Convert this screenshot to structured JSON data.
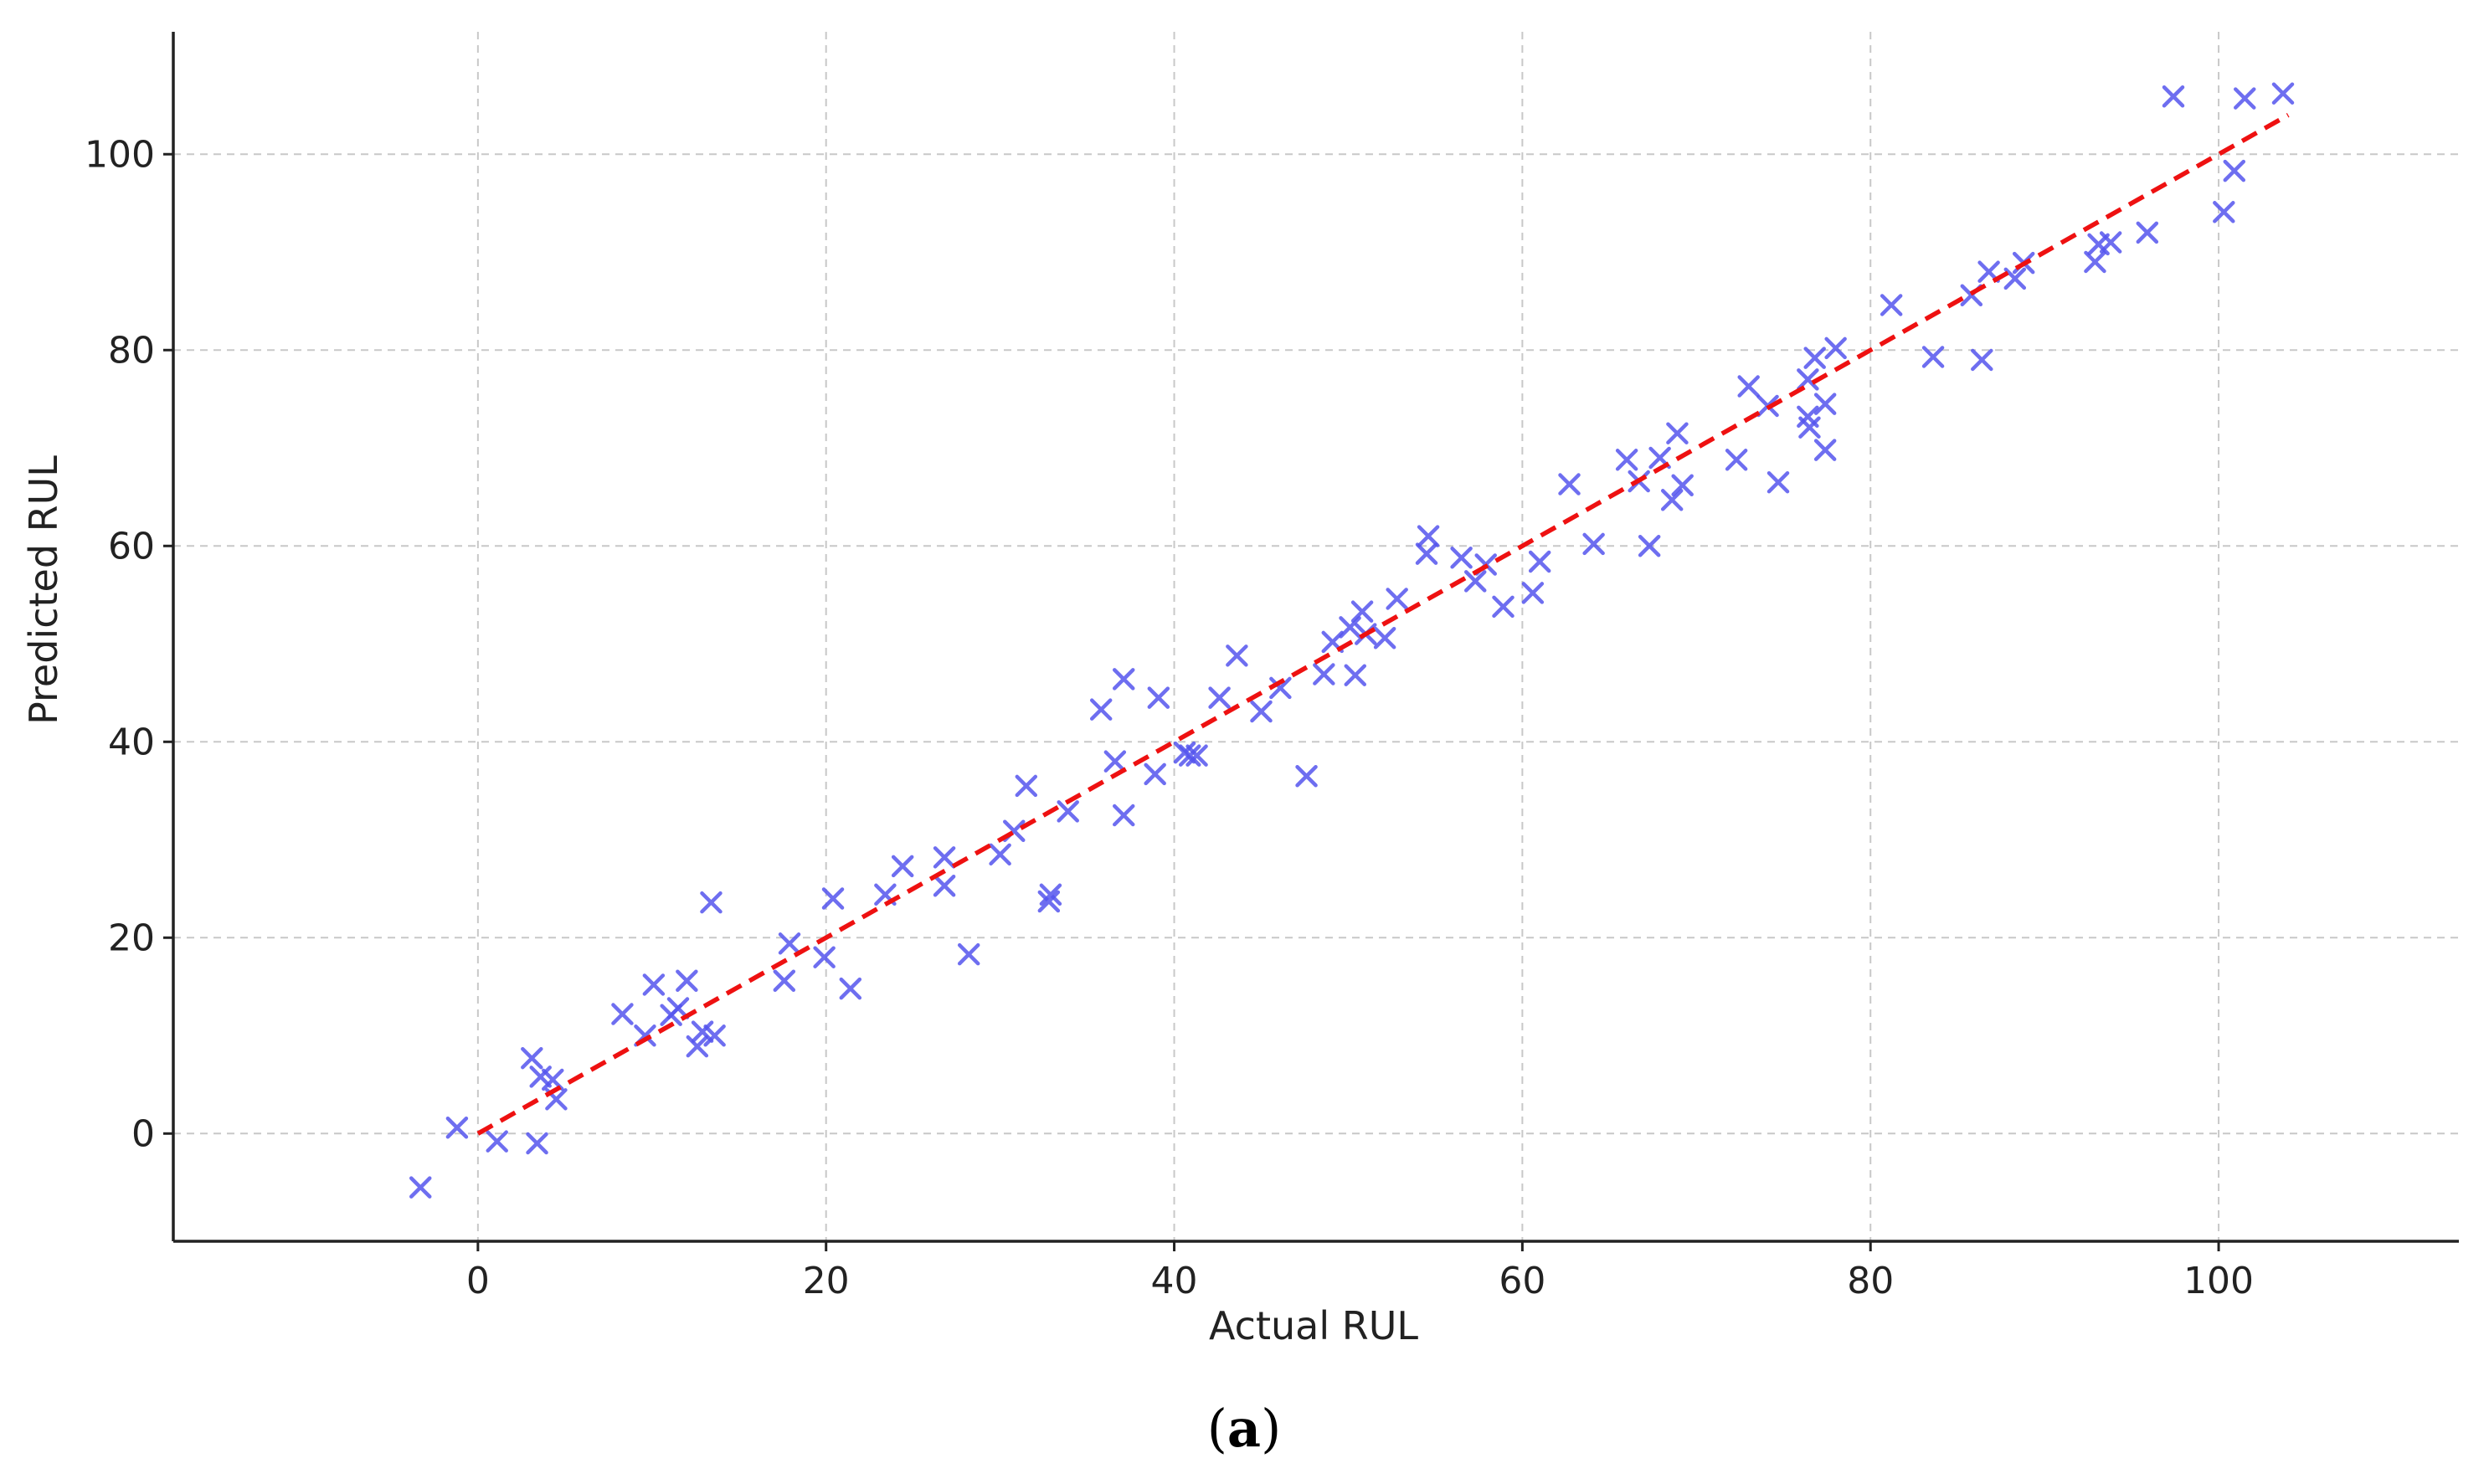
{
  "caption": {
    "open": "(",
    "letter": "a",
    "close": ")"
  },
  "chart_data": {
    "type": "scatter",
    "xlabel": "Actual RUL",
    "ylabel": "Predicted RUL",
    "xlim": [
      -17.5,
      113.8
    ],
    "ylim": [
      -11,
      112.5
    ],
    "xticks": [
      0,
      20,
      40,
      60,
      80,
      100
    ],
    "yticks": [
      0,
      20,
      40,
      60,
      80,
      100
    ],
    "grid": true,
    "grid_style": "dashed",
    "marker": "x",
    "marker_color": "#5555EE",
    "series": [
      {
        "points": [
          [
            -3.3,
            -5.5
          ],
          [
            -1.2,
            0.6
          ],
          [
            1.1,
            -0.8
          ],
          [
            3.1,
            7.7
          ],
          [
            3.4,
            -1.0
          ],
          [
            3.6,
            5.8
          ],
          [
            4.3,
            5.5
          ],
          [
            4.5,
            3.5
          ],
          [
            8.3,
            12.2
          ],
          [
            9.6,
            10.0
          ],
          [
            10.1,
            15.2
          ],
          [
            11.1,
            12.1
          ],
          [
            11.5,
            12.8
          ],
          [
            12.0,
            15.6
          ],
          [
            12.6,
            8.9
          ],
          [
            12.9,
            10.4
          ],
          [
            13.4,
            23.6
          ],
          [
            13.6,
            10.0
          ],
          [
            17.6,
            15.6
          ],
          [
            17.9,
            19.4
          ],
          [
            19.9,
            18.0
          ],
          [
            20.4,
            24.0
          ],
          [
            21.4,
            14.8
          ],
          [
            23.4,
            24.4
          ],
          [
            24.4,
            27.3
          ],
          [
            26.8,
            28.2
          ],
          [
            26.8,
            25.3
          ],
          [
            28.2,
            18.3
          ],
          [
            30.0,
            28.5
          ],
          [
            30.8,
            30.9
          ],
          [
            31.5,
            35.5
          ],
          [
            32.8,
            23.7
          ],
          [
            32.9,
            24.4
          ],
          [
            33.9,
            32.9
          ],
          [
            35.8,
            43.3
          ],
          [
            36.6,
            38.0
          ],
          [
            37.1,
            46.4
          ],
          [
            37.1,
            32.5
          ],
          [
            38.9,
            36.7
          ],
          [
            39.1,
            44.5
          ],
          [
            40.6,
            38.9
          ],
          [
            40.9,
            38.6
          ],
          [
            41.3,
            38.6
          ],
          [
            42.6,
            44.5
          ],
          [
            43.6,
            48.8
          ],
          [
            45.0,
            43.1
          ],
          [
            46.1,
            45.5
          ],
          [
            47.6,
            36.5
          ],
          [
            48.6,
            46.9
          ],
          [
            49.1,
            50.2
          ],
          [
            50.1,
            51.7
          ],
          [
            50.4,
            46.8
          ],
          [
            50.8,
            53.3
          ],
          [
            51.0,
            51.0
          ],
          [
            52.1,
            50.6
          ],
          [
            52.8,
            54.6
          ],
          [
            54.5,
            59.2
          ],
          [
            54.6,
            61.0
          ],
          [
            56.5,
            58.8
          ],
          [
            57.3,
            56.4
          ],
          [
            57.9,
            58.1
          ],
          [
            58.9,
            53.8
          ],
          [
            60.6,
            55.2
          ],
          [
            61.0,
            58.4
          ],
          [
            62.7,
            66.3
          ],
          [
            64.1,
            60.2
          ],
          [
            66.0,
            68.8
          ],
          [
            66.7,
            66.6
          ],
          [
            67.3,
            60.0
          ],
          [
            67.9,
            69.0
          ],
          [
            68.6,
            64.7
          ],
          [
            68.9,
            71.5
          ],
          [
            69.2,
            66.2
          ],
          [
            72.3,
            68.8
          ],
          [
            73.0,
            76.3
          ],
          [
            74.1,
            74.3
          ],
          [
            74.7,
            66.5
          ],
          [
            76.4,
            77.0
          ],
          [
            76.4,
            73.2
          ],
          [
            76.5,
            72.1
          ],
          [
            76.8,
            79.2
          ],
          [
            77.4,
            74.5
          ],
          [
            77.4,
            69.8
          ],
          [
            78.0,
            80.2
          ],
          [
            81.2,
            84.6
          ],
          [
            83.6,
            79.3
          ],
          [
            85.8,
            85.6
          ],
          [
            86.4,
            79.0
          ],
          [
            86.8,
            88.0
          ],
          [
            88.3,
            87.3
          ],
          [
            88.8,
            88.9
          ],
          [
            92.9,
            89.0
          ],
          [
            93.1,
            90.8
          ],
          [
            93.8,
            91.0
          ],
          [
            95.9,
            92.0
          ],
          [
            97.4,
            105.9
          ],
          [
            100.3,
            94.1
          ],
          [
            100.9,
            98.3
          ],
          [
            101.5,
            105.7
          ],
          [
            103.7,
            106.2
          ]
        ]
      }
    ],
    "fit_line": {
      "x": [
        0,
        104
      ],
      "y": [
        0,
        104
      ],
      "color": "#EE1111",
      "style": "dashed"
    }
  }
}
